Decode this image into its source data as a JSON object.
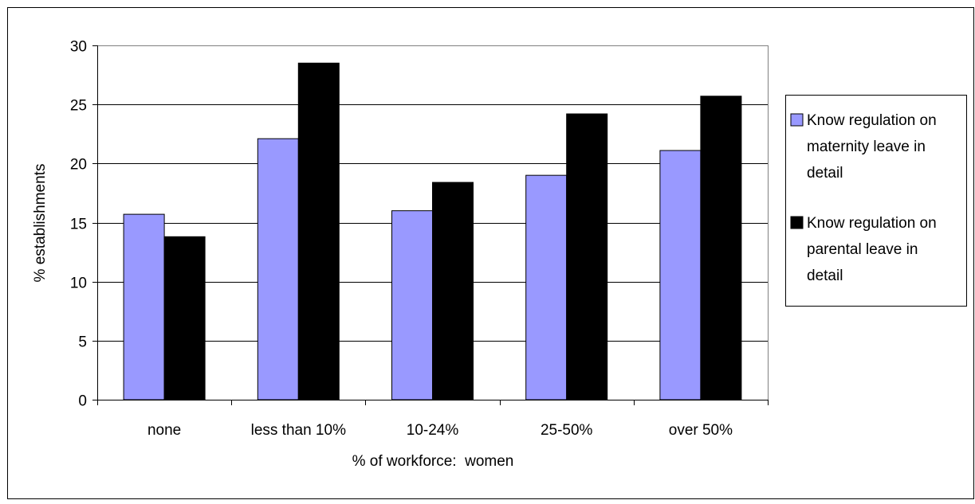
{
  "chart_data": {
    "type": "bar",
    "title": "",
    "xlabel": "% of workforce:  women",
    "ylabel": "% establishments",
    "ylim": [
      0,
      30
    ],
    "yticks": [
      0,
      5,
      10,
      15,
      20,
      25,
      30
    ],
    "grid": true,
    "legend_position": "right",
    "categories": [
      "none",
      "less than 10%",
      "10-24%",
      "25-50%",
      "over 50%"
    ],
    "series": [
      {
        "name": "Know  regulation on maternity leave in detail",
        "legend_lines": [
          "Know  regulation on",
          "maternity leave in",
          "detail"
        ],
        "color": "#9999ff",
        "values": [
          15.7,
          22.1,
          16.0,
          19.0,
          21.1
        ]
      },
      {
        "name": "Know  regulation on parental leave in detail",
        "legend_lines": [
          "Know  regulation on",
          "parental leave in",
          "detail"
        ],
        "color": "#000000",
        "values": [
          13.8,
          28.5,
          18.4,
          24.2,
          25.7
        ]
      }
    ]
  }
}
